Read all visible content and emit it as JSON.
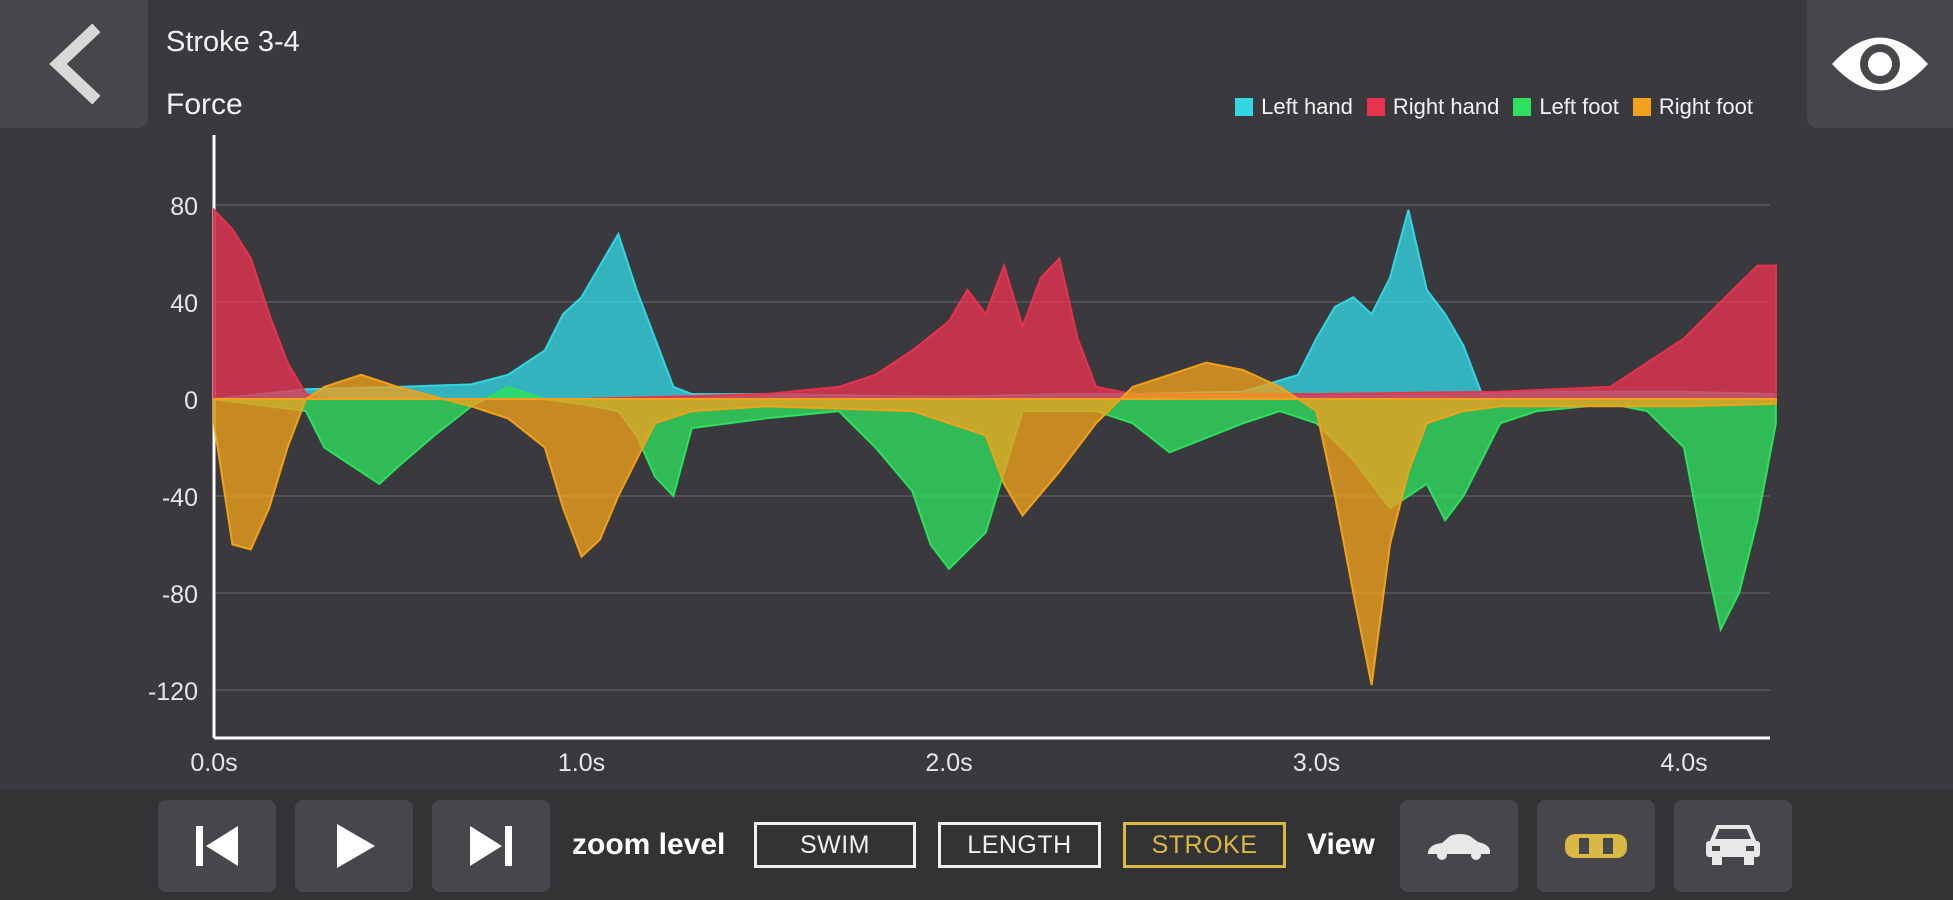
{
  "header": {
    "title": "Stroke 3-4",
    "chart_label": "Force",
    "back_icon": "chevron-left-icon",
    "view_icon": "eye-icon"
  },
  "legend": [
    {
      "label": "Left hand",
      "color": "#33d6e3"
    },
    {
      "label": "Right hand",
      "color": "#e8334f"
    },
    {
      "label": "Left foot",
      "color": "#2ee05e"
    },
    {
      "label": "Right foot",
      "color": "#f0a21c"
    }
  ],
  "chart_data": {
    "type": "area",
    "title": "",
    "ylabel": "Force",
    "xlabel": "",
    "ylim": [
      -130,
      110
    ],
    "xlim": [
      0,
      4.25
    ],
    "yticks": [
      80,
      40,
      0,
      -40,
      -80,
      -120
    ],
    "ytick_labels": [
      "80",
      "40",
      "0",
      "-40",
      "-80",
      "-120"
    ],
    "xticks": [
      0,
      1,
      2,
      3,
      4
    ],
    "xtick_labels": [
      "0.0s",
      "1.0s",
      "2.0s",
      "3.0s",
      "4.0s"
    ],
    "grid": true,
    "series": [
      {
        "name": "Left hand",
        "x": [
          0.0,
          0.25,
          0.5,
          0.7,
          0.8,
          0.9,
          0.95,
          1.0,
          1.05,
          1.1,
          1.15,
          1.2,
          1.25,
          1.3,
          1.5,
          2.0,
          2.3,
          2.5,
          2.8,
          2.95,
          3.0,
          3.05,
          3.1,
          3.15,
          3.2,
          3.25,
          3.3,
          3.35,
          3.4,
          3.45,
          3.5,
          4.0,
          4.25
        ],
        "values": [
          0,
          4,
          5,
          6,
          10,
          20,
          35,
          42,
          55,
          68,
          45,
          25,
          5,
          2,
          2,
          1,
          2,
          2,
          3,
          10,
          25,
          38,
          42,
          35,
          50,
          78,
          45,
          35,
          22,
          2,
          3,
          3,
          2
        ]
      },
      {
        "name": "Right hand",
        "x": [
          0.0,
          0.05,
          0.1,
          0.15,
          0.2,
          0.25,
          0.3,
          0.5,
          1.0,
          1.5,
          1.7,
          1.8,
          1.9,
          2.0,
          2.05,
          2.1,
          2.15,
          2.2,
          2.25,
          2.3,
          2.35,
          2.4,
          2.5,
          3.0,
          3.5,
          3.8,
          3.9,
          4.0,
          4.1,
          4.2,
          4.25
        ],
        "values": [
          78,
          70,
          58,
          35,
          15,
          2,
          0,
          0,
          0,
          2,
          5,
          10,
          20,
          32,
          45,
          35,
          55,
          30,
          50,
          58,
          25,
          5,
          2,
          2,
          3,
          5,
          15,
          25,
          40,
          55,
          55
        ]
      },
      {
        "name": "Left foot",
        "x": [
          0.0,
          0.25,
          0.3,
          0.4,
          0.45,
          0.5,
          0.6,
          0.7,
          0.8,
          0.9,
          1.0,
          1.1,
          1.15,
          1.2,
          1.25,
          1.3,
          1.5,
          1.7,
          1.8,
          1.9,
          1.95,
          2.0,
          2.1,
          2.2,
          2.4,
          2.5,
          2.6,
          2.8,
          2.9,
          3.0,
          3.1,
          3.2,
          3.3,
          3.35,
          3.4,
          3.5,
          3.6,
          3.8,
          3.9,
          4.0,
          4.05,
          4.1,
          4.15,
          4.2,
          4.25
        ],
        "values": [
          0,
          -5,
          -20,
          -30,
          -35,
          -28,
          -15,
          -3,
          5,
          0,
          -2,
          -5,
          -15,
          -32,
          -40,
          -12,
          -8,
          -5,
          -20,
          -38,
          -60,
          -70,
          -55,
          -5,
          -5,
          -10,
          -22,
          -10,
          -5,
          -10,
          -25,
          -45,
          -35,
          -50,
          -40,
          -10,
          -5,
          -2,
          -5,
          -20,
          -60,
          -95,
          -80,
          -50,
          -10
        ]
      },
      {
        "name": "Right foot",
        "x": [
          0.0,
          0.05,
          0.1,
          0.15,
          0.2,
          0.25,
          0.3,
          0.4,
          0.5,
          0.7,
          0.8,
          0.9,
          0.95,
          1.0,
          1.05,
          1.1,
          1.15,
          1.2,
          1.3,
          1.5,
          1.9,
          2.1,
          2.15,
          2.2,
          2.3,
          2.4,
          2.5,
          2.6,
          2.7,
          2.8,
          2.9,
          3.0,
          3.05,
          3.1,
          3.15,
          3.2,
          3.25,
          3.3,
          3.4,
          3.5,
          4.0,
          4.25
        ],
        "values": [
          -10,
          -60,
          -62,
          -45,
          -20,
          0,
          5,
          10,
          5,
          -3,
          -8,
          -20,
          -45,
          -65,
          -58,
          -40,
          -25,
          -10,
          -5,
          -3,
          -5,
          -15,
          -35,
          -48,
          -30,
          -10,
          5,
          10,
          15,
          12,
          5,
          -5,
          -40,
          -80,
          -118,
          -60,
          -30,
          -10,
          -5,
          -3,
          -3,
          -2
        ]
      }
    ]
  },
  "controls": {
    "skip_back_icon": "skip-back-icon",
    "play_icon": "play-icon",
    "skip_forward_icon": "skip-forward-icon",
    "zoom_label": "zoom level",
    "zoom_options": [
      "SWIM",
      "LENGTH",
      "STROKE"
    ],
    "zoom_selected": "STROKE",
    "view_label": "View",
    "view_icons": [
      "side-view-icon",
      "top-view-icon",
      "front-view-icon"
    ],
    "accent_color": "#d9b844"
  }
}
